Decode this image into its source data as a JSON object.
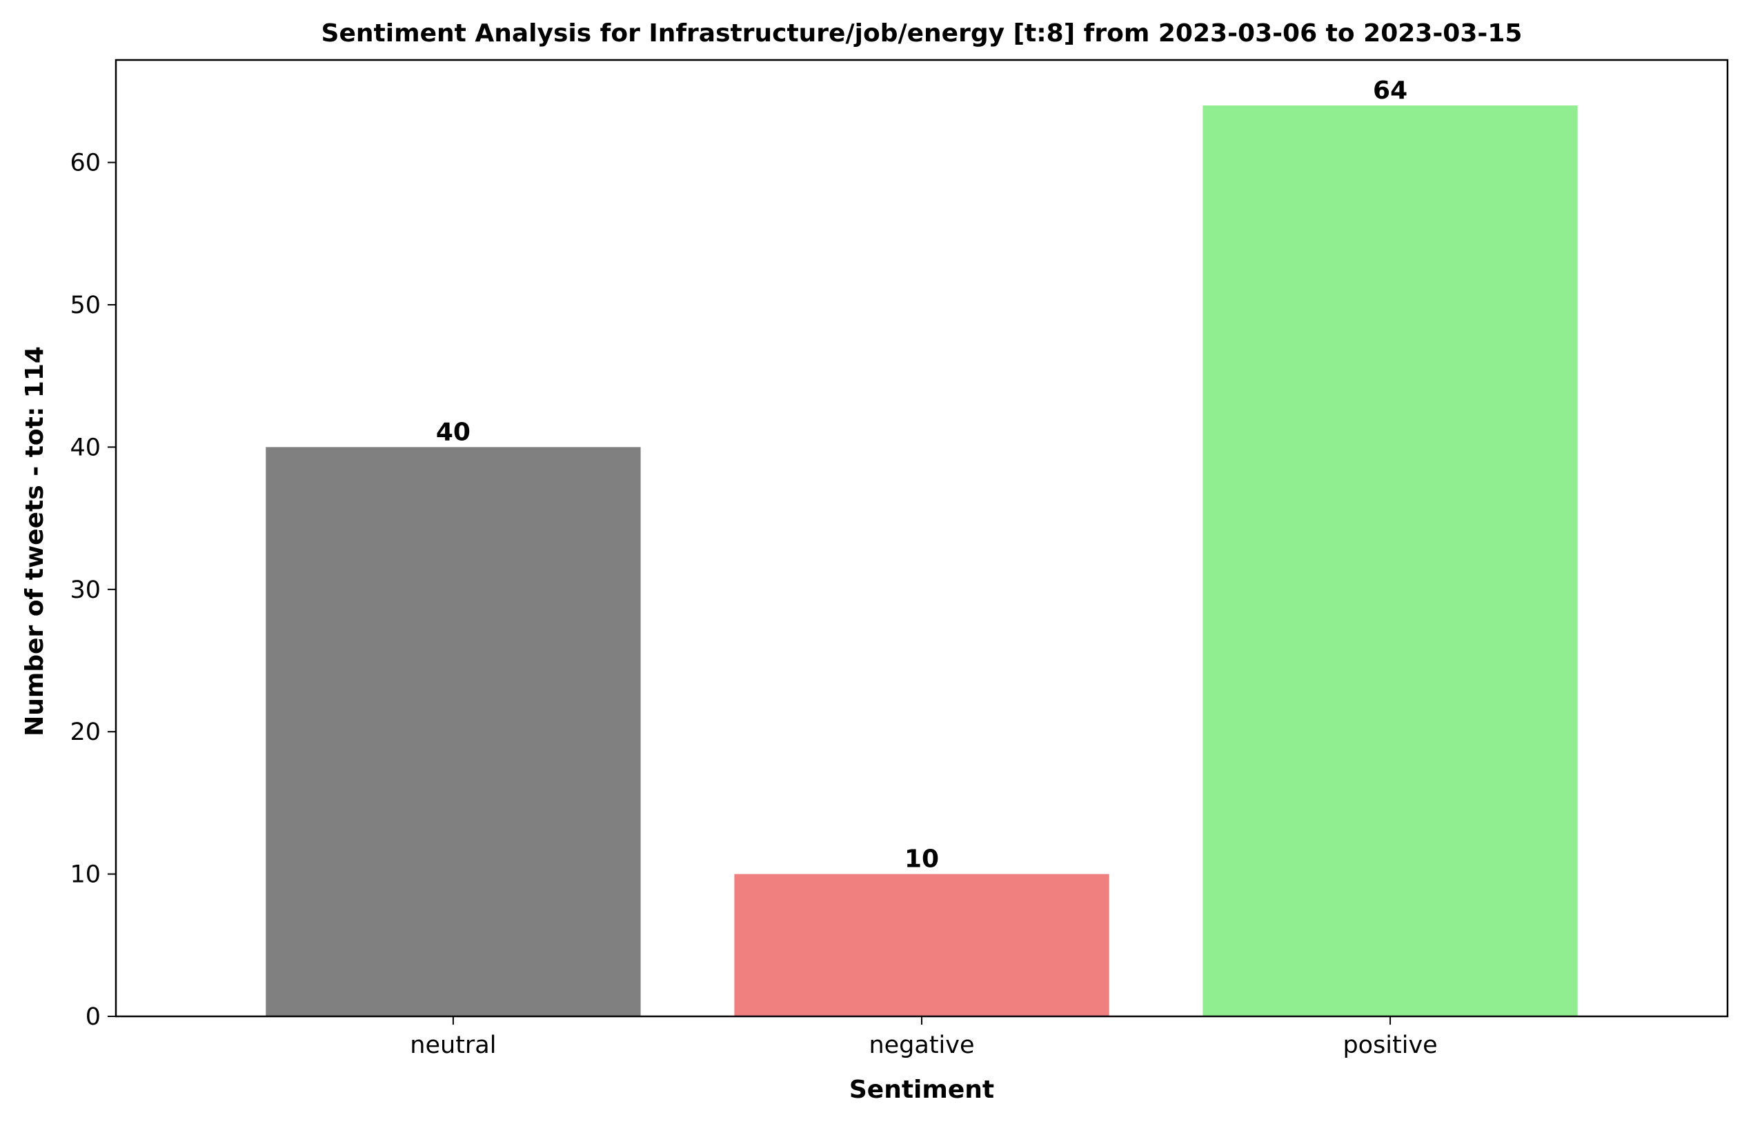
{
  "chart_data": {
    "type": "bar",
    "title": "Sentiment Analysis for Infrastructure/job/energy [t:8] from 2023-03-06 to 2023-03-15",
    "xlabel": "Sentiment",
    "ylabel": "Number of tweets - tot: 114",
    "categories": [
      "neutral",
      "negative",
      "positive"
    ],
    "values": [
      40,
      10,
      64
    ],
    "colors": [
      "#808080",
      "#f08080",
      "#90ee90"
    ],
    "data_labels": [
      "40",
      "10",
      "64"
    ],
    "ylim": [
      0,
      67.2
    ],
    "yticks": [
      0,
      10,
      20,
      30,
      40,
      50,
      60
    ],
    "ytick_labels": [
      "0",
      "10",
      "20",
      "30",
      "40",
      "50",
      "60"
    ],
    "grid": false,
    "legend": "none"
  }
}
